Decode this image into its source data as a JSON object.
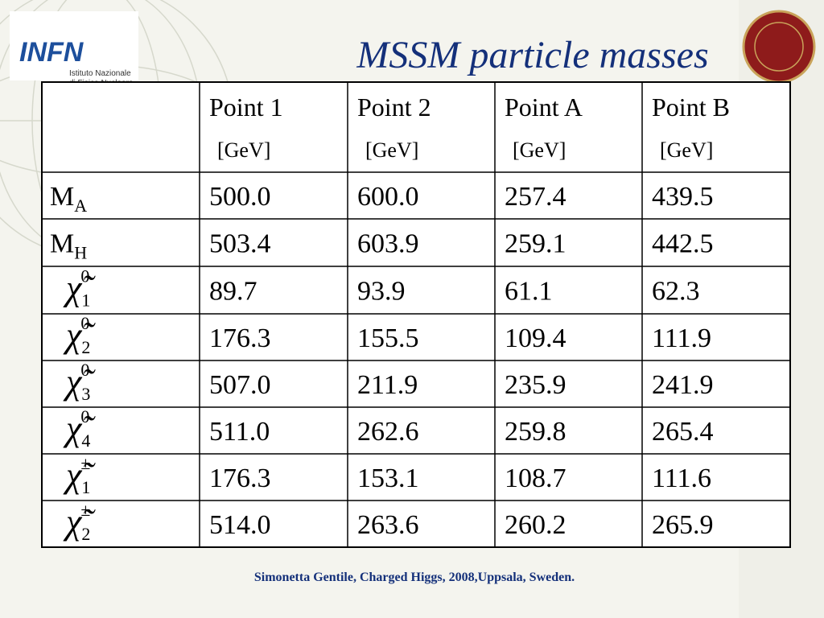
{
  "header": {
    "title": "MSSM particle masses",
    "logo": {
      "name": "INFN",
      "line1": "Istituto Nazionale",
      "line2": "di Fisica Nucleare"
    }
  },
  "table": {
    "columns": [
      {
        "name": "Point 1",
        "unit": "[GeV]"
      },
      {
        "name": "Point 2",
        "unit": "[GeV]"
      },
      {
        "name": "Point A",
        "unit": "[GeV]"
      },
      {
        "name": "Point B",
        "unit": "[GeV]"
      }
    ],
    "rows": [
      {
        "label": {
          "main": "M",
          "sub": "A"
        },
        "cells": [
          "500.0",
          "600.0",
          "257.4",
          "439.5"
        ]
      },
      {
        "label": {
          "main": "M",
          "sub": "H"
        },
        "cells": [
          "503.4",
          "603.9",
          "259.1",
          "442.5"
        ]
      },
      {
        "label": {
          "main": "χ̃",
          "sub": "1",
          "sup": "0"
        },
        "cells": [
          "89.7",
          "93.9",
          "61.1",
          "62.3"
        ]
      },
      {
        "label": {
          "main": "χ̃",
          "sub": "2",
          "sup": "0"
        },
        "cells": [
          "176.3",
          "155.5",
          "109.4",
          "111.9"
        ]
      },
      {
        "label": {
          "main": "χ̃",
          "sub": "3",
          "sup": "0"
        },
        "cells": [
          "507.0",
          "211.9",
          "235.9",
          "241.9"
        ]
      },
      {
        "label": {
          "main": "χ̃",
          "sub": "4",
          "sup": "0"
        },
        "cells": [
          "511.0",
          "262.6",
          "259.8",
          "265.4"
        ]
      },
      {
        "label": {
          "main": "χ̃",
          "sub": "1",
          "sup": "±"
        },
        "cells": [
          "176.3",
          "153.1",
          "108.7",
          "111.6"
        ]
      },
      {
        "label": {
          "main": "χ̃",
          "sub": "2",
          "sup": "±"
        },
        "cells": [
          "514.0",
          "263.6",
          "260.2",
          "265.9"
        ]
      }
    ]
  },
  "footer": "Simonetta Gentile, Charged Higgs, 2008,Uppsala, Sweden."
}
